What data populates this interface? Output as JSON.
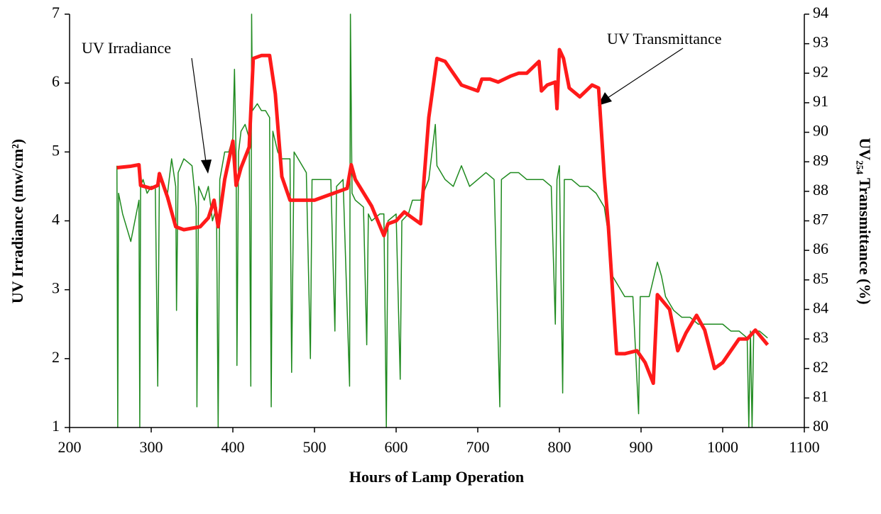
{
  "chart_data": {
    "type": "line",
    "xlabel": "Hours of Lamp Operation",
    "ylabel": "UV Irradiance (mw/cm²)",
    "y2label": "UV₂₅₄ Transmittance (%)",
    "annotations": [
      "UV Irradiance",
      "UV Transmittance"
    ],
    "xlim": [
      200,
      1100
    ],
    "xticks": [
      200,
      300,
      400,
      500,
      600,
      700,
      800,
      900,
      1000,
      1100
    ],
    "ylim": [
      1,
      7
    ],
    "yticks": [
      1,
      2,
      3,
      4,
      5,
      6,
      7
    ],
    "y2lim": [
      80,
      94
    ],
    "y2ticks": [
      80,
      81,
      82,
      83,
      84,
      85,
      86,
      87,
      88,
      89,
      90,
      91,
      92,
      93,
      94
    ],
    "grid": false,
    "series": [
      {
        "name": "UV Irradiance",
        "color": "#1f8a1f",
        "width": 1.5,
        "x": [
          258,
          259,
          260,
          265,
          270,
          275,
          280,
          285,
          286,
          287,
          290,
          295,
          300,
          305,
          308,
          310,
          320,
          325,
          330,
          331,
          333,
          340,
          350,
          355,
          356,
          358,
          365,
          370,
          375,
          380,
          382,
          384,
          390,
          395,
          400,
          402,
          404,
          405,
          407,
          410,
          415,
          420,
          422,
          423,
          424,
          430,
          435,
          440,
          445,
          447,
          449,
          455,
          460,
          470,
          472,
          475,
          480,
          490,
          495,
          497,
          500,
          510,
          520,
          525,
          527,
          535,
          543,
          544,
          546,
          550,
          560,
          564,
          566,
          570,
          580,
          585,
          588,
          590,
          600,
          605,
          607,
          615,
          620,
          630,
          640,
          648,
          650,
          660,
          670,
          680,
          690,
          700,
          710,
          720,
          727,
          729,
          740,
          750,
          760,
          770,
          780,
          790,
          795,
          797,
          800,
          804,
          806,
          815,
          825,
          835,
          845,
          855,
          860,
          865,
          870,
          880,
          890,
          897,
          899,
          910,
          920,
          925,
          930,
          940,
          950,
          960,
          970,
          980,
          990,
          1000,
          1010,
          1020,
          1030,
          1032,
          1034,
          1036,
          1038,
          1045,
          1055
        ],
        "values": [
          4.8,
          1.0,
          4.4,
          4.1,
          3.9,
          3.7,
          4.0,
          4.3,
          1.0,
          4.5,
          4.6,
          4.4,
          4.5,
          4.5,
          1.6,
          4.6,
          4.4,
          4.9,
          4.5,
          2.7,
          4.7,
          4.9,
          4.8,
          4.2,
          1.3,
          4.5,
          4.3,
          4.5,
          4.0,
          4.2,
          1.0,
          4.6,
          5.0,
          5.0,
          5.2,
          6.2,
          4.9,
          1.9,
          5.0,
          5.3,
          5.4,
          5.2,
          1.6,
          7.0,
          5.6,
          5.7,
          5.6,
          5.6,
          5.5,
          1.3,
          5.3,
          5.0,
          4.9,
          4.9,
          1.8,
          5.0,
          4.9,
          4.7,
          2.0,
          4.6,
          4.6,
          4.6,
          4.6,
          2.4,
          4.5,
          4.6,
          1.6,
          7.0,
          4.4,
          4.3,
          4.2,
          2.2,
          4.1,
          4.0,
          4.1,
          4.1,
          1.0,
          4.0,
          4.1,
          1.7,
          4.0,
          4.1,
          4.3,
          4.3,
          4.6,
          5.4,
          4.8,
          4.6,
          4.5,
          4.8,
          4.5,
          4.6,
          4.7,
          4.6,
          1.3,
          4.6,
          4.7,
          4.7,
          4.6,
          4.6,
          4.6,
          4.5,
          2.5,
          4.6,
          4.8,
          1.5,
          4.6,
          4.6,
          4.5,
          4.5,
          4.4,
          4.2,
          3.8,
          3.2,
          3.1,
          2.9,
          2.9,
          1.2,
          2.9,
          2.9,
          3.4,
          3.2,
          2.9,
          2.7,
          2.6,
          2.6,
          2.5,
          2.5,
          2.5,
          2.5,
          2.4,
          2.4,
          2.3,
          1.0,
          2.4,
          1.0,
          2.4,
          2.4,
          2.3
        ]
      },
      {
        "name": "UV Transmittance",
        "color": "#ff1a1a",
        "width": 5,
        "axis": "y2",
        "x": [
          258,
          275,
          285,
          287,
          300,
          308,
          310,
          320,
          330,
          340,
          360,
          370,
          377,
          382,
          390,
          400,
          404,
          410,
          420,
          425,
          435,
          445,
          452,
          460,
          470,
          500,
          520,
          540,
          545,
          550,
          570,
          585,
          590,
          600,
          610,
          620,
          630,
          640,
          650,
          660,
          670,
          680,
          700,
          705,
          715,
          725,
          740,
          750,
          760,
          775,
          778,
          785,
          795,
          797,
          800,
          805,
          812,
          825,
          840,
          848,
          855,
          860,
          870,
          880,
          895,
          905,
          915,
          920,
          935,
          945,
          955,
          968,
          978,
          990,
          1000,
          1010,
          1020,
          1030,
          1040,
          1055
        ],
        "values": [
          88.8,
          88.85,
          88.9,
          88.2,
          88.1,
          88.2,
          88.6,
          87.8,
          86.8,
          86.7,
          86.8,
          87.1,
          87.7,
          86.8,
          88.4,
          89.7,
          88.2,
          88.8,
          89.5,
          92.5,
          92.6,
          92.6,
          91.3,
          88.5,
          87.7,
          87.7,
          87.9,
          88.1,
          88.9,
          88.4,
          87.5,
          86.5,
          86.9,
          87.0,
          87.3,
          87.1,
          86.9,
          90.5,
          92.5,
          92.4,
          92.0,
          91.6,
          91.4,
          91.8,
          91.8,
          91.7,
          91.9,
          92.0,
          92.0,
          92.4,
          91.4,
          91.6,
          91.7,
          90.8,
          92.8,
          92.5,
          91.5,
          91.2,
          91.6,
          91.5,
          88.5,
          86.8,
          82.5,
          82.5,
          82.6,
          82.2,
          81.5,
          84.5,
          84.0,
          82.6,
          83.2,
          83.8,
          83.3,
          82.0,
          82.2,
          82.6,
          83.0,
          83.0,
          83.3,
          82.8
        ]
      }
    ]
  }
}
